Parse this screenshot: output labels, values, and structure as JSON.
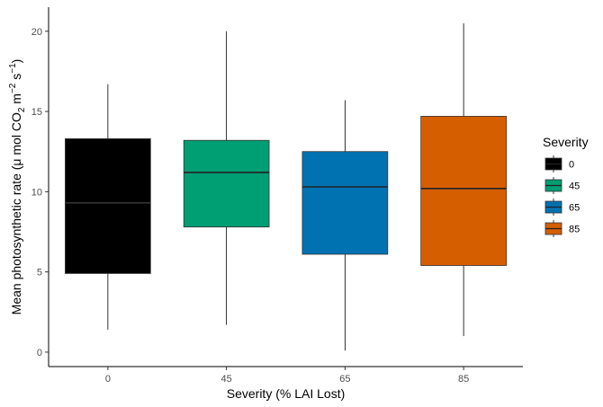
{
  "chart_data": {
    "type": "boxplot",
    "xlabel": "Severity (% LAI Lost)",
    "ylabel": {
      "prefix": "Mean photosynthetic rate (",
      "mu": "μ",
      "mid": " mol CO",
      "sub2": "2",
      "m": " m",
      "exp_m": "−2",
      "s": " s",
      "exp_s": "−1",
      "suffix": ")"
    },
    "ylim": [
      -0.9,
      21.5
    ],
    "yticks": [
      0,
      5,
      10,
      15,
      20
    ],
    "ytick_labels": [
      "0",
      "5",
      "10",
      "15",
      "20"
    ],
    "grid": false,
    "legend": {
      "title": "Severity",
      "position": "right",
      "entries": [
        "0",
        "45",
        "65",
        "85"
      ]
    },
    "categories": [
      "0",
      "45",
      "65",
      "85"
    ],
    "boxes": [
      {
        "category": "0",
        "min": 1.4,
        "q1": 4.9,
        "median": 9.3,
        "q3": 13.3,
        "max": 16.7,
        "color": "#000000"
      },
      {
        "category": "45",
        "min": 1.7,
        "q1": 7.8,
        "median": 11.2,
        "q3": 13.2,
        "max": 20.0,
        "color": "#009E73"
      },
      {
        "category": "65",
        "min": 0.1,
        "q1": 6.1,
        "median": 10.3,
        "q3": 12.5,
        "max": 15.7,
        "color": "#0072B2"
      },
      {
        "category": "85",
        "min": 1.0,
        "q1": 5.4,
        "median": 10.2,
        "q3": 14.7,
        "max": 20.5,
        "color": "#D55E00"
      }
    ]
  }
}
